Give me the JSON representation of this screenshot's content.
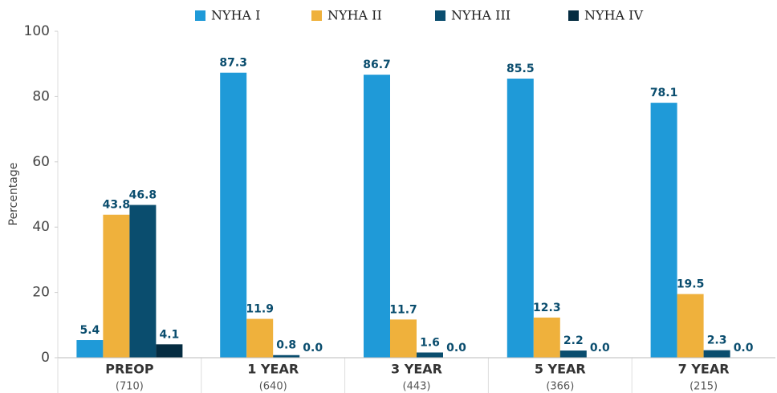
{
  "chart_data": {
    "type": "bar",
    "y_label": "Percentage",
    "categories": [
      "PREOP",
      "1 YEAR",
      "3 YEAR",
      "5 YEAR",
      "7 YEAR"
    ],
    "category_counts": [
      "(710)",
      "(640)",
      "(443)",
      "(366)",
      "(215)"
    ],
    "series": [
      {
        "name": "NYHA I",
        "color": "#1f9ad8",
        "values": [
          5.4,
          87.3,
          86.7,
          85.5,
          78.1
        ],
        "value_labels": [
          "5.4",
          "87.3",
          "86.7",
          "85.5",
          "78.1"
        ]
      },
      {
        "name": "NYHA II",
        "color": "#efb13c",
        "values": [
          43.8,
          11.9,
          11.7,
          12.3,
          19.5
        ],
        "value_labels": [
          "43.8",
          "11.9",
          "11.7",
          "12.3",
          "19.5"
        ]
      },
      {
        "name": "NYHA III",
        "color": "#0a4d6e",
        "values": [
          46.8,
          0.8,
          1.6,
          2.2,
          2.3
        ],
        "value_labels": [
          "46.8",
          "0.8",
          "1.6",
          "2.2",
          "2.3"
        ]
      },
      {
        "name": "NYHA IV",
        "color": "#052c41",
        "values": [
          4.1,
          0,
          0,
          0,
          0
        ],
        "value_labels": [
          "4.1",
          "0.0",
          "0.0",
          "0.0",
          "0.0"
        ]
      }
    ],
    "ylim": [
      0,
      100
    ],
    "yticks": [
      0,
      20,
      40,
      60,
      80,
      100
    ],
    "legend": "top"
  }
}
